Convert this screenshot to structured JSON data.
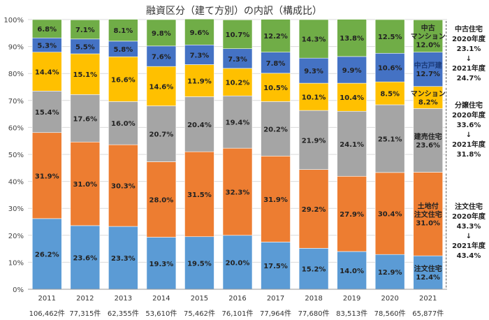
{
  "colors": {
    "注文住宅": "#5b9bd5",
    "土地付注文住宅": "#ed7d31",
    "建売住宅": "#a5a5a5",
    "マンション": "#ffc000",
    "中古戸建": "#4472c4",
    "中古マンション": "#70ad47"
  },
  "chart_data": {
    "type": "bar",
    "stacked": true,
    "title": "融資区分（建て方別）の内訳（構成比）",
    "categories": [
      "2011",
      "2012",
      "2013",
      "2014",
      "2015",
      "2016",
      "2017",
      "2018",
      "2019",
      "2020",
      "2021"
    ],
    "counts": [
      "106,462件",
      "77,315件",
      "62,355件",
      "53,610件",
      "75,462件",
      "76,101件",
      "77,964件",
      "77,680件",
      "83,513件",
      "78,560件",
      "65,877件"
    ],
    "yticks": [
      "0%",
      "10%",
      "20%",
      "30%",
      "40%",
      "50%",
      "60%",
      "70%",
      "80%",
      "90%",
      "100%"
    ],
    "ylim": [
      0,
      100
    ],
    "series": [
      {
        "name": "注文住宅",
        "values": [
          26.2,
          23.6,
          23.3,
          19.3,
          19.5,
          20.0,
          17.5,
          15.2,
          14.0,
          12.9,
          12.4
        ]
      },
      {
        "name": "土地付注文住宅",
        "values": [
          31.9,
          31.0,
          30.3,
          28.0,
          31.5,
          32.3,
          31.9,
          29.2,
          27.9,
          30.4,
          31.0
        ]
      },
      {
        "name": "建売住宅",
        "values": [
          15.4,
          17.6,
          16.0,
          20.7,
          20.4,
          19.4,
          20.2,
          21.9,
          24.1,
          25.1,
          23.6
        ]
      },
      {
        "name": "マンション",
        "values": [
          14.4,
          15.1,
          16.6,
          14.6,
          11.9,
          10.2,
          10.5,
          10.1,
          10.4,
          8.5,
          8.2
        ]
      },
      {
        "name": "中古戸建",
        "values": [
          5.3,
          5.5,
          5.8,
          7.6,
          7.3,
          7.3,
          7.8,
          9.3,
          9.9,
          10.6,
          12.7
        ]
      },
      {
        "name": "中古マンション",
        "values": [
          6.8,
          7.1,
          8.1,
          9.8,
          9.6,
          10.7,
          12.2,
          14.3,
          13.8,
          12.5,
          12.0
        ]
      }
    ],
    "value_labels": [
      [
        "26.2%",
        "23.6%",
        "23.3%",
        "19.3%",
        "19.5%",
        "20.0%",
        "17.5%",
        "15.2%",
        "14.0%",
        "12.9%",
        "12.4%"
      ],
      [
        "31.9%",
        "31.0%",
        "30.3%",
        "28.0%",
        "31.5%",
        "32.3%",
        "31.9%",
        "29.2%",
        "27.9%",
        "30.4%",
        "31.0%"
      ],
      [
        "15.4%",
        "17.6%",
        "16.0%",
        "20.7%",
        "20.4%",
        "19.4%",
        "20.2%",
        "21.9%",
        "24.1%",
        "25.1%",
        "23.6%"
      ],
      [
        "14.4%",
        "15.1%",
        "16.6%",
        "14.6%",
        "11.9%",
        "10.2%",
        "10.5%",
        "10.1%",
        "10.4%",
        "8.5%",
        "8.2%"
      ],
      [
        "5.3%",
        "5.5%",
        "5.8%",
        "7.6%",
        "7.3%",
        "7.3%",
        "7.8%",
        "9.3%",
        "9.9%",
        "10.6%",
        "12.7%"
      ],
      [
        "6.8%",
        "7.1%",
        "8.1%",
        "9.8%",
        "9.6%",
        "10.7%",
        "12.2%",
        "14.3%",
        "13.8%",
        "12.5%",
        "12.0%"
      ]
    ],
    "segment_names_2021": [
      [
        "注文住宅"
      ],
      [
        "土地付",
        "注文住宅"
      ],
      [
        "建売住宅"
      ],
      [
        "マンション"
      ],
      [
        "中古戸建"
      ],
      [
        "中古",
        "マンション"
      ]
    ],
    "side_notes": [
      {
        "series": "中古戸建・中古マンション",
        "lines": [
          "中古住宅",
          "2020年度",
          "23.1%",
          "↓",
          "2021年度",
          "24.7%"
        ]
      },
      {
        "series": "マンション・建売住宅",
        "lines": [
          "分譲住宅",
          "2020年度",
          "33.6%",
          "↓",
          "2021年度",
          "31.8%"
        ]
      },
      {
        "series": "注文住宅・土地付注文住宅",
        "lines": [
          "注文住宅",
          "2020年度",
          "43.3%",
          "↓",
          "2021年度",
          "43.4%"
        ]
      }
    ]
  }
}
